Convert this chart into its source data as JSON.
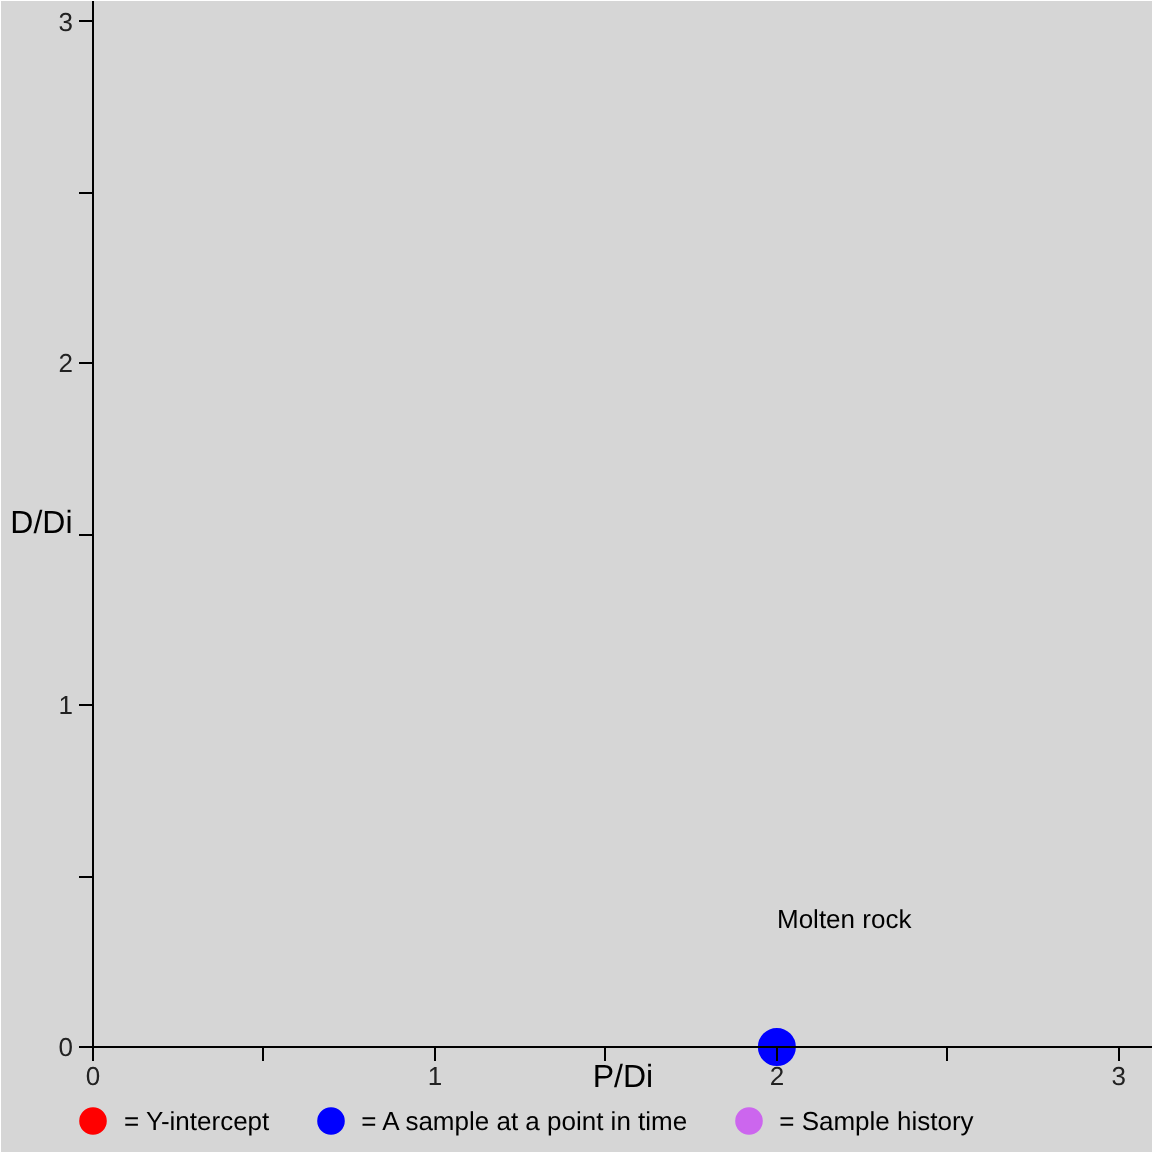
{
  "chart_data": {
    "type": "scatter",
    "xlabel": "P/Di",
    "ylabel": "D/Di",
    "xlim": [
      0,
      3.1
    ],
    "ylim": [
      0,
      3.06
    ],
    "xticks": [
      0,
      {
        "value": 0.5,
        "label": null
      },
      1,
      {
        "value": 1.5,
        "label": null
      },
      2,
      {
        "value": 2.5,
        "label": null
      },
      3
    ],
    "yticks": [
      0,
      {
        "value": 0.5,
        "label": null
      },
      1,
      {
        "value": 1.5,
        "label": null
      },
      2,
      {
        "value": 2.5,
        "label": null
      },
      3
    ],
    "series": [
      {
        "name": "= Y-intercept",
        "color": "#ff0000"
      },
      {
        "name": "= A sample at a point in time",
        "color": "#0000ff",
        "x": [
          2
        ],
        "values": [
          0
        ]
      },
      {
        "name": "= Sample history",
        "color": "#cc66ee"
      }
    ],
    "annotations": [
      "Molten rock"
    ],
    "marker": "circle",
    "legend": "bottom"
  }
}
